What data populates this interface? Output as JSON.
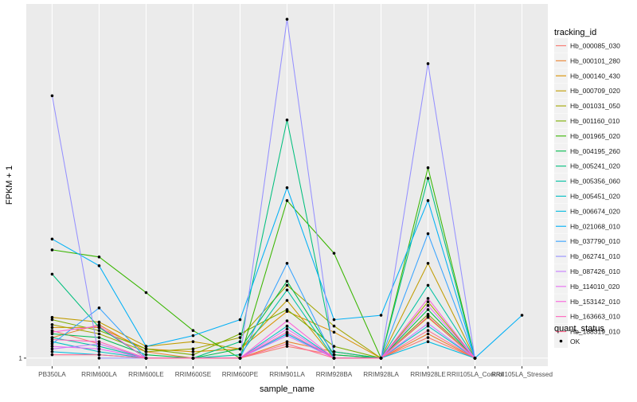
{
  "chart_data": {
    "type": "line",
    "title": "",
    "xlabel": "sample_name",
    "ylabel": "FPKM + 1",
    "y_tick_labels": [
      "1"
    ],
    "grid": true,
    "legend_position": "right",
    "categories": [
      "PB350LA",
      "RRIM600LA",
      "RRIM600LE",
      "RRIM600SE",
      "RRIM600PE",
      "RRIM901LA",
      "RRIM928BA",
      "RRIM928LA",
      "RRIM928LE",
      "RRII105LA_Control",
      "RRII105LA_Stressed"
    ],
    "series": [
      {
        "name": "Hb_000085_030",
        "color": "#F8766D",
        "values": [
          2.2,
          1.5,
          1.0,
          1.0,
          1.0,
          1.4,
          1.1,
          1.0,
          1.8,
          1.0,
          null
        ]
      },
      {
        "name": "Hb_000101_280",
        "color": "#EA8331",
        "values": [
          1.8,
          2.6,
          1.2,
          1.0,
          1.0,
          1.6,
          1.2,
          1.0,
          2.0,
          1.0,
          null
        ]
      },
      {
        "name": "Hb_000140_430",
        "color": "#D89000",
        "values": [
          2.4,
          2.4,
          1.3,
          1.2,
          1.3,
          3.8,
          2.1,
          1.0,
          3.2,
          1.0,
          null
        ]
      },
      {
        "name": "Hb_000709_020",
        "color": "#C09B00",
        "values": [
          3.2,
          2.8,
          1.4,
          1.6,
          1.3,
          5.2,
          1.0,
          1.0,
          15.0,
          1.0,
          null
        ]
      },
      {
        "name": "Hb_001031_050",
        "color": "#A3A500",
        "values": [
          2.6,
          2.0,
          1.2,
          1.3,
          1.8,
          8.0,
          2.5,
          1.0,
          5.0,
          1.0,
          null
        ]
      },
      {
        "name": "Hb_001160_010",
        "color": "#7CAE00",
        "values": [
          3.0,
          2.2,
          1.3,
          1.1,
          2.0,
          4.0,
          1.4,
          1.0,
          3.5,
          1.0,
          null
        ]
      },
      {
        "name": "Hb_001965_020",
        "color": "#39B600",
        "values": [
          22.0,
          18.0,
          6.5,
          2.2,
          1.0,
          90.0,
          20.0,
          1.0,
          230.0,
          1.0,
          null
        ]
      },
      {
        "name": "Hb_004195_260",
        "color": "#00BB4E",
        "values": [
          2.0,
          1.8,
          1.1,
          1.0,
          1.3,
          9.0,
          1.1,
          1.0,
          4.0,
          1.0,
          null
        ]
      },
      {
        "name": "Hb_005241_020",
        "color": "#00BF7D",
        "values": [
          11.0,
          2.4,
          1.0,
          1.0,
          1.6,
          900.0,
          1.2,
          1.0,
          170.0,
          1.0,
          null
        ]
      },
      {
        "name": "Hb_005356_060",
        "color": "#00C1A3",
        "values": [
          1.8,
          1.4,
          1.0,
          1.0,
          1.1,
          7.0,
          1.0,
          1.0,
          8.0,
          1.0,
          null
        ]
      },
      {
        "name": "Hb_005451_020",
        "color": "#00BFC4",
        "values": [
          1.6,
          1.2,
          1.0,
          1.0,
          1.0,
          2.5,
          1.0,
          1.0,
          2.5,
          1.0,
          null
        ]
      },
      {
        "name": "Hb_006674_020",
        "color": "#00BAE0",
        "values": [
          1.2,
          1.1,
          1.0,
          1.0,
          1.0,
          2.0,
          1.0,
          1.0,
          1.6,
          1.0,
          null
        ]
      },
      {
        "name": "Hb_021068_010",
        "color": "#00B0F6",
        "values": [
          30.0,
          14.0,
          1.4,
          1.9,
          3.0,
          130.0,
          3.0,
          3.4,
          90.0,
          1.0,
          3.4
        ]
      },
      {
        "name": "Hb_037790_010",
        "color": "#35A2FF",
        "values": [
          1.5,
          4.2,
          1.0,
          1.0,
          1.0,
          15.0,
          1.0,
          1.0,
          35.0,
          1.0,
          null
        ]
      },
      {
        "name": "Hb_062741_010",
        "color": "#9590FF",
        "values": [
          1800.0,
          1.0,
          1.0,
          1.0,
          1.0,
          16000.0,
          1.0,
          1.0,
          4500.0,
          1.0,
          null
        ]
      },
      {
        "name": "Hb_087426_010",
        "color": "#C77CFF",
        "values": [
          1.3,
          1.5,
          1.0,
          1.0,
          1.0,
          1.9,
          1.0,
          1.0,
          2.7,
          1.0,
          null
        ]
      },
      {
        "name": "Hb_114010_020",
        "color": "#E76BF3",
        "values": [
          1.4,
          1.3,
          1.0,
          1.0,
          1.0,
          2.3,
          1.0,
          1.0,
          4.5,
          1.0,
          null
        ]
      },
      {
        "name": "Hb_153142_010",
        "color": "#FA62DB",
        "values": [
          2.1,
          2.5,
          1.0,
          1.0,
          1.0,
          2.9,
          1.0,
          1.0,
          5.5,
          1.0,
          null
        ]
      },
      {
        "name": "Hb_163663_010",
        "color": "#FF62BC",
        "values": [
          1.7,
          1.6,
          1.0,
          1.0,
          1.0,
          2.1,
          1.0,
          1.0,
          3.3,
          1.0,
          null
        ]
      },
      {
        "name": "Hb_188319_010",
        "color": "#FF6C91",
        "values": [
          1.1,
          1.1,
          1.0,
          1.0,
          1.0,
          1.5,
          1.0,
          1.0,
          2.2,
          1.0,
          null
        ]
      }
    ],
    "legend": {
      "title": "tracking_id",
      "shape_title": "quant_status",
      "shape_label": "OK"
    }
  }
}
